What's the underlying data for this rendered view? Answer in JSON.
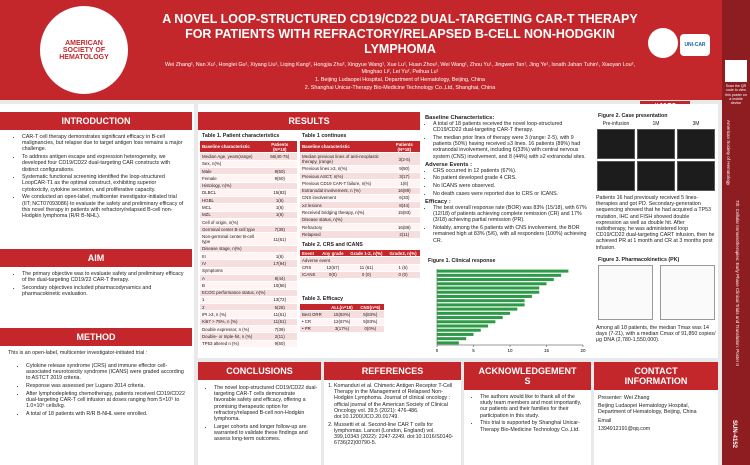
{
  "header": {
    "title": "A NOVEL LOOP-STRUCTURED CD19/CD22 DUAL-TARGETING CAR-T THERAPY FOR PATIENTS WITH REFRACTORY/RELAPSED B-CELL NON-HODGKIN LYMPHOMA",
    "authors": "Wei Zhang¹, Nan Xu¹, Honglei Gu¹, Xiyang Liu¹, Liqing Kang², Hongjia Zhu², Xingyue Wang¹, Xue Lu¹, Huan Zhou¹, Wei Wang¹, Zhou Yu¹, Jingwen Tan¹, Jing Ye¹, Isnath Jahan Tuhin¹, Xiaoyan Lou², Minghao Li², Lei Yu², Peihua Lu¹",
    "affiliations": [
      "1. Beijing Ludaopei Hospital, Department of Hematology, Beijing, China",
      "2. Shanghai Unicar-Therapy Bio-Medicine Technology Co.,Ltd, Shanghai, China"
    ],
    "logo_text": "AMERICAN SOCIETY OF HEMATOLOGY",
    "partner_logo": "UNI-CAR",
    "poster_id": "#4152"
  },
  "side": {
    "qr_note": "Scan the QR code to view this poster on a mobile device",
    "session": "7th: Cellular Immunotherapies: Early Phase Clinical Trials and Translation: Poster II",
    "society": "American Society of Hematology",
    "code": "SUN-4152"
  },
  "introduction": {
    "heading": "INTRODUCTION",
    "bullets": [
      "CAR-T cell therapy demonstrates significant efficacy in B-cell malignancies, but relapse due to target antigen loss remains a major challenge.",
      "To address antigen escape and expression heterogeneity, we developed four CD19/CD22 dual-targeting CAR constructs with distinct configurations.",
      "Systematic functional screening identified the loop-structured LoopCAR-T1 as the optimal construct, exhibiting superior cytotoxicity, cytokine secretion, and proliferative capacity.",
      "We conducted an open-label, multicenter investigator-initiated trial (IIT; NCT07093086) to evaluate the safety and preliminary efficacy of this novel therapy in patients with refractory/relapsed B-cell non-Hodgkin lymphoma (R/R B-NHL)."
    ]
  },
  "aim": {
    "heading": "AIM",
    "bullets": [
      "The primary objective was to evaluate safety and preliminary efficacy of the dual-targeting CD19/22 CAR-T therapy.",
      "Secondary objectives included pharmacodynamics and pharmacokinetic evaluation."
    ]
  },
  "method": {
    "heading": "METHOD",
    "intro": "This is an open-label, multicenter investigator-initiated trial :",
    "bullets": [
      "Cytokine release syndrome (CRS) and immune effector cell-associated neurotoxicity syndrome (ICANS) were graded according to ASTCT 2019 criteria.",
      "Response was assessed per Lugano 2014 criteria.",
      "After lymphodepleting chemotherapy, patients received CD19/CD22 dual-targeting CAR-T cell infusion at doses ranging from 5×10⁵ to 1.0×10⁶ cells/kg.",
      "A total of 18 patients with R/R B-NHL were enrolled."
    ]
  },
  "results": {
    "heading": "RESULTS"
  },
  "table1": {
    "caption": "Table 1. Patient characteristics",
    "header": [
      "Baseline characteristic",
      "Patients (N=18)"
    ],
    "rows": [
      [
        "Median Age, years(range)",
        "56(40-75)"
      ],
      [
        "Sex, n(%)"
      ],
      [
        "Male",
        "9(50)"
      ],
      [
        "Female",
        "9(50)"
      ],
      [
        "Histology, n(%)"
      ],
      [
        "DLBCL",
        "15(83)"
      ],
      [
        "HGBL",
        "1(6)"
      ],
      [
        "MCL",
        "1(6)"
      ],
      [
        "MZL",
        "1(6)"
      ],
      [
        "Cell of origin, n(%)"
      ],
      [
        "Germinal center B-cell type",
        "7(39)"
      ],
      [
        "Non-germinal center B-cell type",
        "11(61)"
      ],
      [
        "Disease stage, n(%)"
      ],
      [
        "III",
        "1(6)"
      ],
      [
        "IV",
        "17(94)"
      ],
      [
        "Symptoms"
      ],
      [
        "A",
        "8(44)"
      ],
      [
        "B",
        "10(56)"
      ],
      [
        "ECOG performance status, n(%)"
      ],
      [
        "1",
        "13(72)"
      ],
      [
        "2",
        "5(28)"
      ],
      [
        "IPI ≥3, n (%)",
        "11(61)"
      ],
      [
        "Ki67 > 75%, n (%)",
        "11(61)"
      ],
      [
        "Double expressor, n (%)",
        "7(39)"
      ],
      [
        "Double- or triple-hit, n (%)",
        "2(11)"
      ],
      [
        "TP53 altered n (%)",
        "9(50)"
      ]
    ]
  },
  "table1b": {
    "caption": "Table 1 continues",
    "header": [
      "Baseline characteristic",
      "Patients (N=18)"
    ],
    "rows": [
      [
        "Median previous lines of anti-neoplastic therapy, (range)",
        "3(2-5)"
      ],
      [
        "Previous lines ≥3, n(%)",
        "9(50)"
      ],
      [
        "Previous ASCT, n(%)",
        "3(17)"
      ],
      [
        "Previous CD19 CAR-T failure, n(%)",
        "1(6)"
      ],
      [
        "Extranodal involvement, n (%)",
        "16(89)"
      ],
      [
        "CNS involvement",
        "6(33)"
      ],
      [
        "≥2 lesions",
        "8(44)"
      ],
      [
        "Received bridging therapy, n(%)",
        "15(83)"
      ],
      [
        "Disease status, n(%)"
      ],
      [
        "Refractory",
        "16(89)"
      ],
      [
        "Relapsed",
        "2(11)"
      ]
    ]
  },
  "table2": {
    "caption": "Table 2. CRS and ICANS",
    "header": [
      "Event",
      "Any grade",
      "Grade 1-2, n(%)",
      "Grade3, n(%)"
    ],
    "rows": [
      [
        "Adverse event"
      ],
      [
        "CRS",
        "12(67)",
        "11 (61)",
        "1 (6)"
      ],
      [
        "ICANS",
        "0(0)",
        "0 (0)",
        "0 (0)"
      ]
    ]
  },
  "table3": {
    "caption": "Table 3. Efficacy",
    "header": [
      "ALL(n=18)",
      "CNS(n=6)"
    ],
    "rows": [
      [
        "Best ORR",
        "15(83%)",
        "5(83%)"
      ],
      [
        "• CR",
        "12(67%)",
        "5(83%)"
      ],
      [
        "• PR",
        "3(17%)",
        "0(0%)"
      ]
    ]
  },
  "summary": {
    "baseline_heading": "Baseline Characteristics:",
    "baseline": [
      "A total of 18 patients received the novel loop-structured CD19/CD22 dual-targeting CAR-T therapy.",
      "The median prior lines of therapy were 3 (range: 2-5), with 9 patients (50%) having received ≥3 lines. 16 patients (89%) had extranodal involvement, including 6(33%) with central nervous system (CNS) involvement, and 8 (44%) with ≥2 extranodal sites."
    ],
    "ae_heading": "Adverse Events :",
    "ae": [
      "CRS occurred in 12 patients (67%).",
      "No patient developed grade 4 CRS.",
      "No ICANS were observed.",
      "No death cases were reported due to CRS or ICANS."
    ],
    "efficacy_heading": "Efficacy :",
    "efficacy": [
      "The best overall response rate (BOR) was 83% (15/18), with 67% (12/18) of patients achieving complete remission (CR) and 17% (3/18) achieving partial remission (PR).",
      "Notably, among the 6 patients with CNS involvement, the BOR remained high at 83% (5/6), with all responders (100%) achieving CR."
    ]
  },
  "figure1": {
    "type": "bar",
    "title": "Figure 1. Clinical response",
    "color": "#2e9a48",
    "values": [
      18,
      17,
      16,
      15,
      14,
      14,
      13,
      12,
      12,
      11,
      10,
      9,
      8,
      7,
      6,
      5,
      4,
      3
    ],
    "xlim": [
      0,
      20
    ],
    "xticks": [
      0,
      5,
      10,
      15,
      20
    ]
  },
  "figure2": {
    "title": "Figure 2. Case presentation",
    "panels": [
      "Pre-infusion",
      "1M",
      "3M"
    ],
    "text": "Patients 16 had previously received 5 lines-therapies and got PD. Secondary-generation sequencing showed that he had acquired a TP53 mutation, IHC and FISH showed double expression as well as double hit. After radiotherapy, he was administered loop CD19/CD22 dual-targeting CART infusion, then he achieved PR at 1 month and CR at 3 months post infusion."
  },
  "figure3": {
    "title": "Figure 3. Pharmacokinetics (PK)",
    "text": "Among all 18 patients, the median Tmax was 14 days (7-21), with a median Cmax of 91,850 copies/μg DNA (2,780-1,550,000)."
  },
  "conclusions": {
    "heading": "CONCLUSIONS",
    "bullets": [
      "The novel loop-structured CD19/CD22 dual-targeting CAR-T cells demonstrate favorable safety and efficacy, offering a promising therapeutic option for refractory/relapsed B-cell non-Hodgkin lymphoma.",
      "Larger cohorts and longer follow-up are warranted to validate these findings and assess long-term outcomes."
    ]
  },
  "references": {
    "heading": "REFERENCES",
    "items": [
      "Komanduri et al. Chimeric Antigen Receptor T-Cell Therapy in the Management of Relapsed Non-Hodgkin Lymphoma. Journal of clinical oncology : official journal of the American Society of Clinical Oncology vol. 39,5 (2021): 476-486. doi:10.1200/JCO.20.01749.",
      "Mussetti et al. Second-line CAR T cells for lymphomas. Lancet (London, England) vol. 399,10343 (2022): 2247-2249. doi:10.1016/S0140-6736(22)00790-5."
    ]
  },
  "acknowledgements": {
    "heading": "ACKNOWLEDGEMENTS",
    "bullets": [
      "The authors would like to thank all of the study team members and most importantly, our patients and their families for their participation in this study.",
      "This trial is supported by Shanghai Unicar-Therapy Bio-Medicine Technology Co.,Ltd."
    ]
  },
  "contact": {
    "heading": "CONTACT INFORMATION",
    "lines": [
      "Presenter: Wei Zhang",
      "Beijing Ludaopei Hematology Hospital, Department of Hematology, Beijing, China",
      "Email",
      "1394912191@qq.com"
    ]
  }
}
